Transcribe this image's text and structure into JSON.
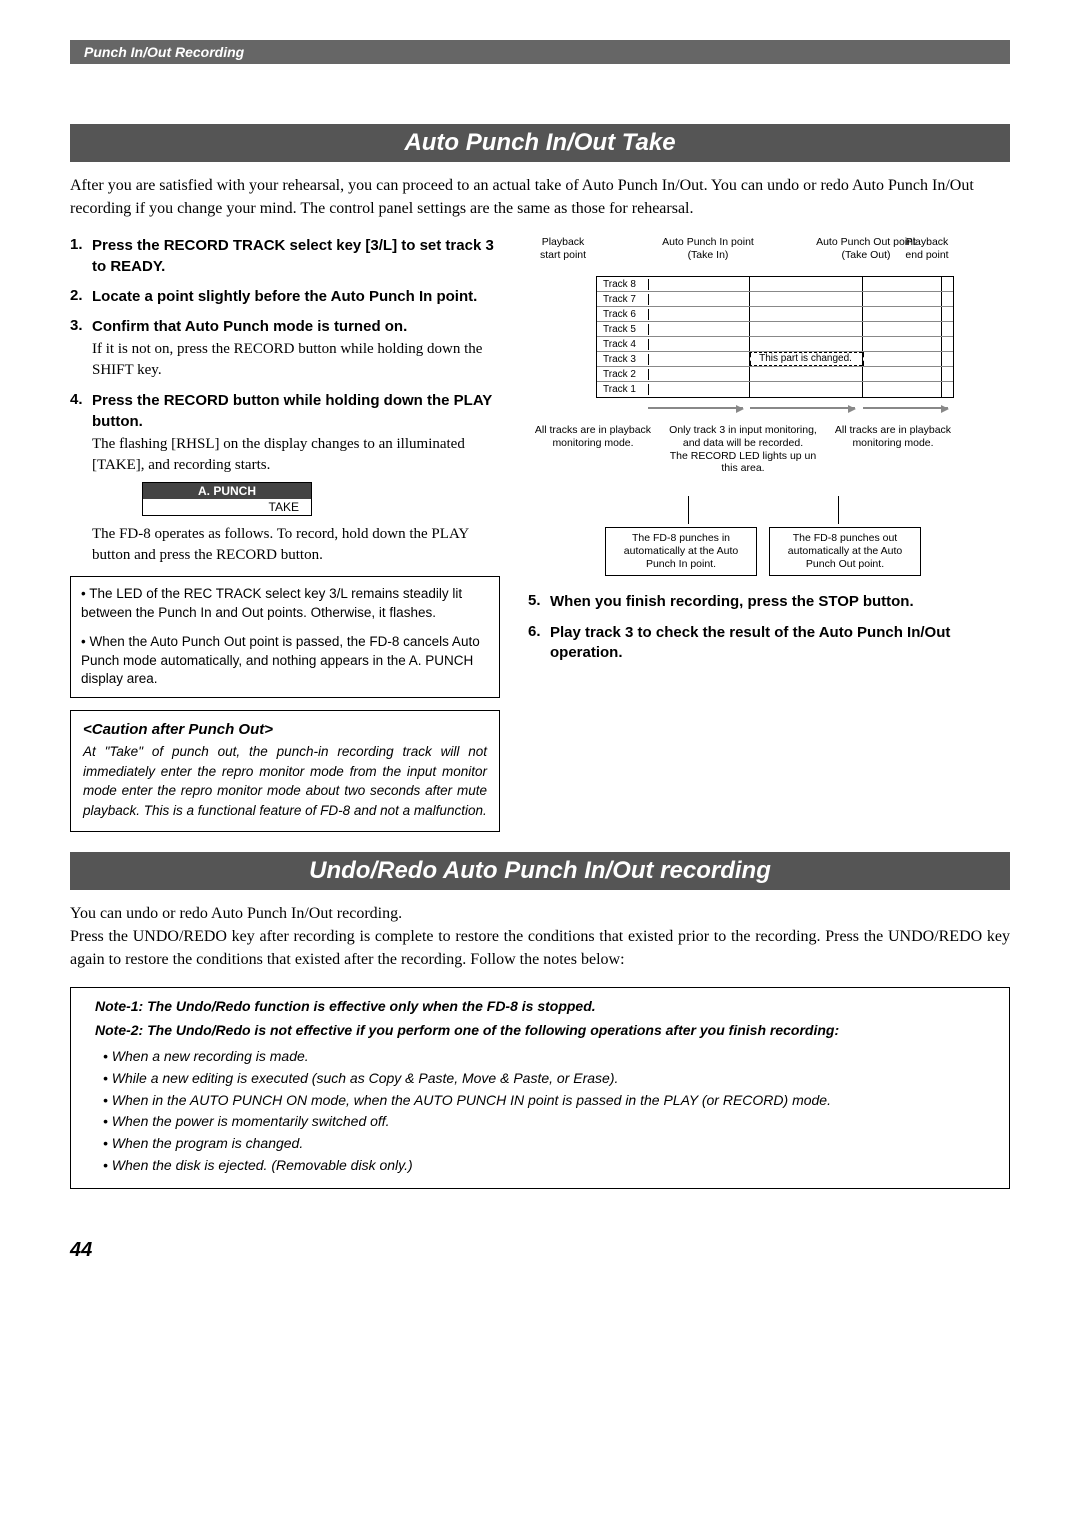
{
  "header": {
    "title": "Punch In/Out Recording"
  },
  "section1": {
    "title": "Auto Punch In/Out Take",
    "intro": "After you are satisfied with your rehearsal, you can proceed to an actual take of Auto Punch In/Out. You can undo or redo Auto Punch In/Out recording if you change your mind.  The control panel settings are the same as those for rehearsal."
  },
  "steps_left": [
    {
      "head": "Press the RECORD TRACK select key [3/L] to set track 3 to READY.",
      "body": ""
    },
    {
      "head": "Locate a point slightly before the Auto Punch In point.",
      "body": ""
    },
    {
      "head": "Confirm that Auto Punch mode is turned on.",
      "body": "If it is not on, press the RECORD button while holding down the SHIFT key."
    },
    {
      "head": "Press the RECORD button while holding down the PLAY button.",
      "body": "The flashing [RHSL] on the display changes to an illuminated [TAKE], and recording starts."
    }
  ],
  "display": {
    "head": "A. PUNCH",
    "value": "TAKE"
  },
  "after4": "The FD-8 operates as follows.  To record, hold down the PLAY button and press the RECORD button.",
  "info_box": {
    "p1": "• The LED of the REC TRACK select key 3/L remains steadily lit between the Punch In and Out points. Otherwise, it flashes.",
    "p2": "• When the Auto Punch Out point is passed, the FD-8 cancels Auto Punch mode automatically, and nothing appears in the A. PUNCH display area."
  },
  "caution": {
    "title": "<Caution after Punch Out>",
    "body": "At \"Take\" of punch out, the punch-in recording track will not immediately enter the repro monitor mode from the input monitor mode enter the repro monitor mode about two seconds after mute playback.  This is a functional feature of FD-8 and not a malfunction."
  },
  "diagram": {
    "labels": {
      "pb_start": "Playback\nstart point",
      "punch_in": "Auto Punch In point\n(Take In)",
      "punch_out": "Auto Punch Out point\n(Take Out)",
      "pb_end": "Playback\nend point"
    },
    "tracks": [
      "Track 8",
      "Track 7",
      "Track 6",
      "Track 5",
      "Track 4",
      "Track 3",
      "Track 2",
      "Track 1"
    ],
    "changed_track_index": 5,
    "changed_text": "This part is changed.",
    "col_pct": {
      "in": 33,
      "out": 70,
      "end": 96
    },
    "notes": {
      "left": "All tracks are in playback monitoring mode.",
      "mid": "Only track 3 in input monitoring, and data will be recorded.\nThe RECORD LED lights up un this area.",
      "right": "All tracks are in playback monitoring mode."
    },
    "callouts": {
      "left": "The FD-8 punches in automatically at the Auto Punch In point.",
      "right": "The FD-8 punches out automatically at the Auto Punch Out point."
    }
  },
  "steps_right": [
    {
      "head": "When you finish recording, press the STOP button.",
      "body": ""
    },
    {
      "head": "Play track 3 to check the result of the Auto Punch In/Out operation.",
      "body": ""
    }
  ],
  "section2": {
    "title": "Undo/Redo Auto Punch In/Out recording",
    "intro": "You can undo or redo Auto Punch In/Out recording.\nPress the UNDO/REDO key after recording is complete to restore the conditions that existed prior to the recording. Press the UNDO/REDO key again to restore the conditions that existed after the recording.  Follow the notes below:"
  },
  "notes_box": {
    "note1": "Note-1: The Undo/Redo function is effective only when the FD-8 is stopped.",
    "note2": "Note-2: The Undo/Redo is not effective if you perform one of the following operations after you finish recording:",
    "bullets": [
      "When a new recording is made.",
      "While a new editing is executed (such as Copy & Paste, Move & Paste, or  Erase).",
      "When in the AUTO PUNCH ON mode, when the AUTO PUNCH IN point is passed in the PLAY (or RECORD) mode.",
      "When the power is momentarily switched off.",
      "When the program is changed.",
      "When the disk is ejected. (Removable disk only.)"
    ]
  },
  "page_number": "44",
  "colors": {
    "header_bg": "#666666",
    "section_bg": "#555555",
    "display_head_bg": "#444444",
    "track_border": "#888888",
    "arrow": "#888888"
  }
}
